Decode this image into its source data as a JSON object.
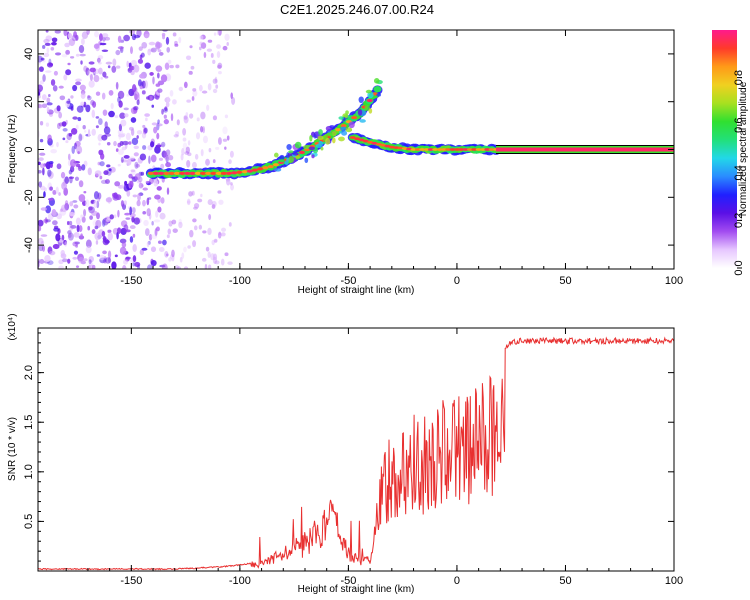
{
  "title": "C2E1.2025.246.07.00.R24",
  "colors": {
    "snr_line": "#e83030",
    "colormap": [
      "#ffffff",
      "#e6c6ff",
      "#a24cf0",
      "#5a10e6",
      "#2020ff",
      "#2a8cff",
      "#22d8e8",
      "#22e07a",
      "#30e030",
      "#a8e020",
      "#f0d020",
      "#ff9a18",
      "#ff3a2a",
      "#ff1a8c"
    ]
  },
  "chart_data": [
    {
      "type": "heatmap",
      "name": "spectrogram",
      "xlabel": "Height of straight line (km)",
      "ylabel": "Frequency (Hz)",
      "xlim": [
        -193,
        100
      ],
      "ylim": [
        -50,
        50
      ],
      "xticks": [
        -150,
        -100,
        -50,
        0,
        50,
        100
      ],
      "yticks": [
        40,
        20,
        0,
        -20,
        -40
      ],
      "colorbar": {
        "label": "Normalized spectral amplitude",
        "range": [
          0,
          1
        ],
        "ticks": [
          "0.0",
          "0.2",
          "0.4",
          "0.6",
          "0.8"
        ]
      },
      "ridge": [
        {
          "x": -141,
          "y": -10
        },
        {
          "x": -135,
          "y": -10
        },
        {
          "x": -120,
          "y": -10
        },
        {
          "x": -105,
          "y": -10
        },
        {
          "x": -95,
          "y": -9
        },
        {
          "x": -85,
          "y": -7
        },
        {
          "x": -75,
          "y": -3
        },
        {
          "x": -65,
          "y": 2
        },
        {
          "x": -55,
          "y": 8
        },
        {
          "x": -45,
          "y": 15
        },
        {
          "x": -38,
          "y": 23
        },
        {
          "x": -34,
          "y": 28
        }
      ],
      "ridge2": [
        {
          "x": -48,
          "y": 5
        },
        {
          "x": -40,
          "y": 3
        },
        {
          "x": -30,
          "y": 1
        },
        {
          "x": -20,
          "y": 0
        },
        {
          "x": -10,
          "y": 0
        },
        {
          "x": 0,
          "y": 0
        },
        {
          "x": 20,
          "y": 0
        },
        {
          "x": 100,
          "y": 0
        }
      ]
    },
    {
      "type": "line",
      "name": "snr",
      "xlabel": "Height of straight line (km)",
      "ylabel": "SNR (10 * v/v)",
      "y_exponent_label": "(x10⁴)",
      "xlim": [
        -193,
        100
      ],
      "ylim": [
        0,
        2.45
      ],
      "xticks": [
        -150,
        -100,
        -50,
        0,
        50,
        100
      ],
      "yticks": [
        "0.5",
        "1.0",
        "1.5",
        "2.0"
      ],
      "envelope": [
        {
          "x": -193,
          "y": 0.02
        },
        {
          "x": -130,
          "y": 0.02
        },
        {
          "x": -110,
          "y": 0.04
        },
        {
          "x": -100,
          "y": 0.06
        },
        {
          "x": -90,
          "y": 0.1
        },
        {
          "x": -80,
          "y": 0.25
        },
        {
          "x": -70,
          "y": 0.4
        },
        {
          "x": -62,
          "y": 0.6
        },
        {
          "x": -57,
          "y": 0.85
        },
        {
          "x": -54,
          "y": 0.5
        },
        {
          "x": -50,
          "y": 0.25
        },
        {
          "x": -45,
          "y": 0.15
        },
        {
          "x": -40,
          "y": 0.15
        },
        {
          "x": -37,
          "y": 0.8
        },
        {
          "x": -34,
          "y": 1.3
        },
        {
          "x": -28,
          "y": 1.4
        },
        {
          "x": -20,
          "y": 1.6
        },
        {
          "x": -10,
          "y": 1.6
        },
        {
          "x": -5,
          "y": 1.8
        },
        {
          "x": 0,
          "y": 1.8
        },
        {
          "x": 10,
          "y": 1.9
        },
        {
          "x": 20,
          "y": 2.2
        },
        {
          "x": 25,
          "y": 2.3
        },
        {
          "x": 30,
          "y": 2.32
        },
        {
          "x": 50,
          "y": 2.32
        },
        {
          "x": 100,
          "y": 2.32
        }
      ]
    }
  ]
}
